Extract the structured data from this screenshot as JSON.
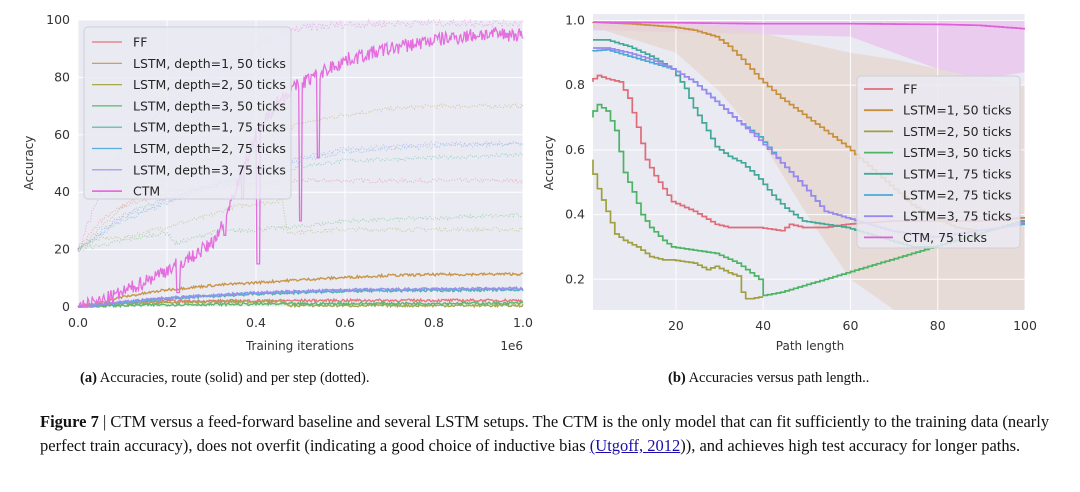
{
  "chart_data": [
    {
      "id": "a",
      "type": "line",
      "title": "",
      "xlabel": "Training iterations",
      "x_offset_label": "1e6",
      "ylabel": "Accuracy",
      "xlim": [
        0,
        1.0
      ],
      "ylim": [
        0,
        100
      ],
      "xticks": [
        0.0,
        0.2,
        0.4,
        0.6,
        0.8,
        1.0
      ],
      "xtick_labels": [
        "0.0",
        "0.2",
        "0.4",
        "0.6",
        "0.8",
        "1.0"
      ],
      "yticks": [
        0,
        20,
        40,
        60,
        80,
        100
      ],
      "ytick_labels": [
        "0",
        "20",
        "40",
        "60",
        "80",
        "100"
      ],
      "grid": true,
      "legend_position": "upper-left",
      "note": "solid = route accuracy, dotted = per step accuracy",
      "series": [
        {
          "name": "FF",
          "color": "#e8747c",
          "solid": {
            "x": [
              0,
              0.05,
              0.1,
              0.2,
              0.4,
              0.6,
              0.8,
              1.0
            ],
            "y": [
              0,
              1,
              1.5,
              2,
              2.2,
              2.3,
              2.3,
              2.3
            ]
          },
          "dotted": {
            "x": [
              0,
              0.05,
              0.1,
              0.2,
              0.3,
              0.4,
              0.5,
              0.6,
              0.8,
              1.0
            ],
            "y": [
              20,
              30,
              35,
              40,
              42,
              43,
              44,
              44,
              44,
              44
            ]
          }
        },
        {
          "name": "LSTM, depth=1, 50 ticks",
          "color": "#c8964a",
          "solid": {
            "x": [
              0,
              0.05,
              0.1,
              0.2,
              0.3,
              0.4,
              0.5,
              0.6,
              0.7,
              0.8,
              1.0
            ],
            "y": [
              0,
              1.5,
              3.5,
              6,
              7.5,
              8.5,
              9.5,
              10.3,
              11,
              11.3,
              11.5
            ]
          },
          "dotted": {
            "x": [
              0,
              0.1,
              0.2,
              0.3,
              0.4,
              0.5,
              0.6,
              0.7,
              0.8,
              1.0
            ],
            "y": [
              20,
              35,
              45,
              52,
              58,
              64,
              67,
              69,
              70,
              70
            ]
          }
        },
        {
          "name": "LSTM, depth=2, 50 ticks",
          "color": "#a8a84a",
          "solid": {
            "x": [
              0,
              0.1,
              0.2,
              0.3,
              0.46,
              0.47,
              0.6,
              0.8,
              1.0
            ],
            "y": [
              0,
              1,
              1.5,
              1.8,
              2,
              0.5,
              0.5,
              0.5,
              0.5
            ]
          },
          "dotted": {
            "x": [
              0,
              0.05,
              0.1,
              0.2,
              0.3,
              0.35,
              0.4,
              0.46,
              0.47,
              0.6,
              0.8,
              1.0
            ],
            "y": [
              20,
              24,
              24,
              28,
              32,
              35,
              36,
              37,
              26,
              27,
              27,
              27
            ]
          }
        },
        {
          "name": "LSTM, depth=3, 50 ticks",
          "color": "#5cb86c",
          "solid": {
            "x": [
              0,
              0.1,
              0.2,
              0.4,
              0.6,
              0.8,
              1.0
            ],
            "y": [
              0,
              0.5,
              0.8,
              1,
              1.2,
              1.3,
              1.3
            ]
          },
          "dotted": {
            "x": [
              0,
              0.1,
              0.2,
              0.22,
              0.3,
              0.4,
              0.5,
              0.6,
              0.8,
              1.0
            ],
            "y": [
              20,
              23,
              26,
              22,
              26,
              27,
              28,
              30,
              31,
              32
            ]
          }
        },
        {
          "name": "LSTM, depth=1, 75 ticks",
          "color": "#4cb4a4",
          "solid": {
            "x": [
              0,
              0.1,
              0.2,
              0.4,
              0.6,
              0.8,
              1.0
            ],
            "y": [
              0,
              1.5,
              3,
              4.5,
              5.5,
              5.8,
              6
            ]
          },
          "dotted": {
            "x": [
              0,
              0.1,
              0.2,
              0.3,
              0.4,
              0.5,
              0.6,
              0.8,
              1.0
            ],
            "y": [
              20,
              32,
              38,
              42,
              45,
              49,
              51,
              52,
              53
            ]
          }
        },
        {
          "name": "LSTM, depth=2, 75 ticks",
          "color": "#5aaed8",
          "solid": {
            "x": [
              0,
              0.1,
              0.2,
              0.4,
              0.6,
              0.8,
              1.0
            ],
            "y": [
              0,
              1.5,
              3,
              4.8,
              5.8,
              6,
              6.2
            ]
          },
          "dotted": {
            "x": [
              0,
              0.1,
              0.2,
              0.3,
              0.4,
              0.5,
              0.6,
              0.8,
              1.0
            ],
            "y": [
              20,
              30,
              36,
              42,
              46,
              51,
              54,
              56,
              57
            ]
          }
        },
        {
          "name": "LSTM, depth=3, 75 ticks",
          "color": "#9c8ef0",
          "solid": {
            "x": [
              0,
              0.1,
              0.2,
              0.4,
              0.6,
              0.8,
              1.0
            ],
            "y": [
              0,
              1.8,
              3.2,
              5,
              6,
              6.3,
              6.5
            ]
          },
          "dotted": {
            "x": [
              0,
              0.1,
              0.2,
              0.3,
              0.4,
              0.5,
              0.6,
              0.8,
              1.0
            ],
            "y": [
              20,
              31,
              37,
              43,
              47,
              52,
              55,
              57,
              57
            ]
          }
        },
        {
          "name": "CTM",
          "color": "#e46ede",
          "solid": {
            "x": [
              0,
              0.05,
              0.1,
              0.15,
              0.2,
              0.25,
              0.3,
              0.33,
              0.35,
              0.38,
              0.4,
              0.45,
              0.5,
              0.55,
              0.6,
              0.65,
              0.7,
              0.8,
              0.9,
              1.0
            ],
            "y": [
              0,
              2,
              5,
              9,
              13,
              17,
              22,
              30,
              40,
              52,
              60,
              72,
              78,
              82,
              86,
              88,
              90,
              93,
              95,
              95
            ]
          },
          "dotted": {
            "x": [
              0,
              0.05,
              0.1,
              0.2,
              0.3,
              0.4,
              0.45,
              0.5,
              0.6,
              0.8,
              1.0
            ],
            "y": [
              20,
              40,
              55,
              70,
              80,
              90,
              95,
              97,
              98.5,
              99,
              99
            ]
          }
        }
      ]
    },
    {
      "id": "b",
      "type": "line",
      "title": "",
      "xlabel": "Path length",
      "ylabel": "Accuracy",
      "xlim": [
        1,
        100
      ],
      "ylim": [
        0.105,
        1.02
      ],
      "xticks": [
        20,
        40,
        60,
        80,
        100
      ],
      "xtick_labels": [
        "20",
        "40",
        "60",
        "80",
        "100"
      ],
      "yticks": [
        0.2,
        0.4,
        0.6,
        0.8,
        1.0
      ],
      "ytick_labels": [
        "0.2",
        "0.4",
        "0.6",
        "0.8",
        "1.0"
      ],
      "grid": true,
      "legend_position": "center-right",
      "series": [
        {
          "name": "FF",
          "color": "#e06c78",
          "x": [
            1,
            3,
            5,
            8,
            10,
            12,
            14,
            16,
            18,
            20,
            25,
            30,
            33,
            35,
            40,
            45,
            47,
            50,
            55,
            60,
            70,
            80,
            90,
            100
          ],
          "y": [
            0.81,
            0.83,
            0.82,
            0.81,
            0.76,
            0.67,
            0.57,
            0.52,
            0.48,
            0.44,
            0.41,
            0.37,
            0.36,
            0.36,
            0.36,
            0.35,
            0.37,
            0.36,
            0.36,
            0.37,
            0.38,
            0.38,
            0.38,
            0.39
          ]
        },
        {
          "name": "LSTM=1, 50 ticks",
          "color": "#c8903c",
          "x": [
            1,
            10,
            20,
            25,
            30,
            33,
            36,
            40,
            45,
            50,
            55,
            60,
            65,
            70,
            75,
            80,
            85,
            90,
            95,
            100
          ],
          "y": [
            0.995,
            0.99,
            0.98,
            0.97,
            0.95,
            0.92,
            0.88,
            0.82,
            0.76,
            0.71,
            0.66,
            0.61,
            0.55,
            0.49,
            0.43,
            0.39,
            0.36,
            0.35,
            0.36,
            0.38
          ]
        },
        {
          "name": "LSTM=2, 50 ticks",
          "color": "#a0a040",
          "x": [
            1,
            3,
            5,
            7,
            9,
            12,
            15,
            18,
            20,
            25,
            28,
            30,
            33,
            35,
            36,
            37,
            38,
            40
          ],
          "y": [
            0.57,
            0.48,
            0.41,
            0.34,
            0.32,
            0.3,
            0.27,
            0.26,
            0.26,
            0.25,
            0.23,
            0.24,
            0.22,
            0.21,
            0.16,
            0.14,
            0.14,
            0.145
          ]
        },
        {
          "name": "LSTM=3, 50 ticks",
          "color": "#4cb464",
          "x": [
            1,
            3,
            5,
            7,
            9,
            11,
            13,
            15,
            18,
            20,
            25,
            30,
            35,
            38,
            40,
            41,
            45,
            50,
            55,
            60,
            65,
            70,
            75,
            80,
            85,
            90,
            95,
            100
          ],
          "y": [
            0.7,
            0.74,
            0.72,
            0.66,
            0.53,
            0.47,
            0.4,
            0.36,
            0.32,
            0.3,
            0.29,
            0.28,
            0.25,
            0.22,
            0.2,
            0.15,
            0.16,
            0.18,
            0.2,
            0.22,
            0.24,
            0.26,
            0.28,
            0.3,
            0.32,
            0.34,
            0.36,
            0.38
          ]
        },
        {
          "name": "LSTM=1, 75 ticks",
          "color": "#44a898",
          "x": [
            1,
            5,
            10,
            15,
            20,
            23,
            25,
            28,
            30,
            33,
            36,
            40,
            43,
            46,
            50,
            55,
            60,
            65,
            70,
            75,
            80,
            85
          ],
          "y": [
            0.94,
            0.94,
            0.92,
            0.89,
            0.85,
            0.79,
            0.73,
            0.66,
            0.61,
            0.58,
            0.56,
            0.51,
            0.46,
            0.42,
            0.38,
            0.37,
            0.36,
            0.34,
            0.32,
            0.3,
            0.3,
            0.32
          ]
        },
        {
          "name": "LSTM=2, 75 ticks",
          "color": "#4ca8d4",
          "x": [
            1,
            5,
            10,
            15,
            20,
            25,
            30,
            35,
            40,
            45,
            50,
            55,
            60,
            65,
            70,
            75,
            80,
            85,
            90,
            95,
            100
          ],
          "y": [
            0.905,
            0.91,
            0.89,
            0.87,
            0.85,
            0.81,
            0.75,
            0.69,
            0.64,
            0.56,
            0.49,
            0.41,
            0.39,
            0.37,
            0.35,
            0.34,
            0.33,
            0.34,
            0.35,
            0.36,
            0.37
          ]
        },
        {
          "name": "LSTM=3, 75 ticks",
          "color": "#9c88f0",
          "x": [
            1,
            5,
            10,
            15,
            20,
            25,
            30,
            35,
            40,
            45,
            50,
            55,
            60,
            65,
            70,
            75,
            80,
            85,
            90,
            95,
            100
          ],
          "y": [
            0.915,
            0.915,
            0.9,
            0.88,
            0.85,
            0.81,
            0.75,
            0.69,
            0.63,
            0.56,
            0.49,
            0.41,
            0.39,
            0.37,
            0.35,
            0.34,
            0.33,
            0.34,
            0.35,
            0.36,
            0.375
          ]
        },
        {
          "name": "CTM, 75 ticks",
          "color": "#e060d8",
          "x": [
            1,
            20,
            40,
            60,
            80,
            90,
            95,
            100
          ],
          "y": [
            0.995,
            0.993,
            0.99,
            0.99,
            0.988,
            0.985,
            0.98,
            0.975
          ]
        }
      ],
      "bands": [
        {
          "series": "CTM, 75 ticks",
          "x": [
            1,
            60,
            70,
            80,
            90,
            100
          ],
          "upper": [
            1.0,
            1.0,
            1.0,
            1.0,
            1.0,
            1.0
          ],
          "lower": [
            0.97,
            0.95,
            0.9,
            0.85,
            0.82,
            0.84
          ]
        },
        {
          "series": "LSTM=1, 50 ticks",
          "x": [
            1,
            20,
            30,
            40,
            50,
            60,
            70,
            80,
            90,
            100
          ],
          "upper": [
            1.0,
            0.99,
            0.98,
            0.96,
            0.93,
            0.9,
            0.88,
            0.85,
            0.82,
            0.8
          ],
          "lower": [
            0.98,
            0.9,
            0.78,
            0.62,
            0.4,
            0.2,
            0.1,
            0.1,
            0.1,
            0.1
          ]
        }
      ]
    }
  ],
  "subcaptions": {
    "a_label": "(a)",
    "a_text": "Accuracies, route (solid) and per step (dotted).",
    "b_label": "(b)",
    "b_text": "Accuracies versus path length.."
  },
  "figure_caption": {
    "label": "Figure 7",
    "separator": "|",
    "text_before_link": "CTM versus a feed-forward baseline and several LSTM setups. The CTM is the only model that can fit sufficiently to the training data (nearly perfect train accuracy), does not overfit (indicating a good choice of inductive bias ",
    "link_text": "(Utgoff, 2012",
    "text_after_link": ")), and achieves high test accuracy for longer paths."
  },
  "colors": {
    "plot_background": "#eaeaf2",
    "grid": "#ffffff",
    "link": "#1a0dab"
  }
}
